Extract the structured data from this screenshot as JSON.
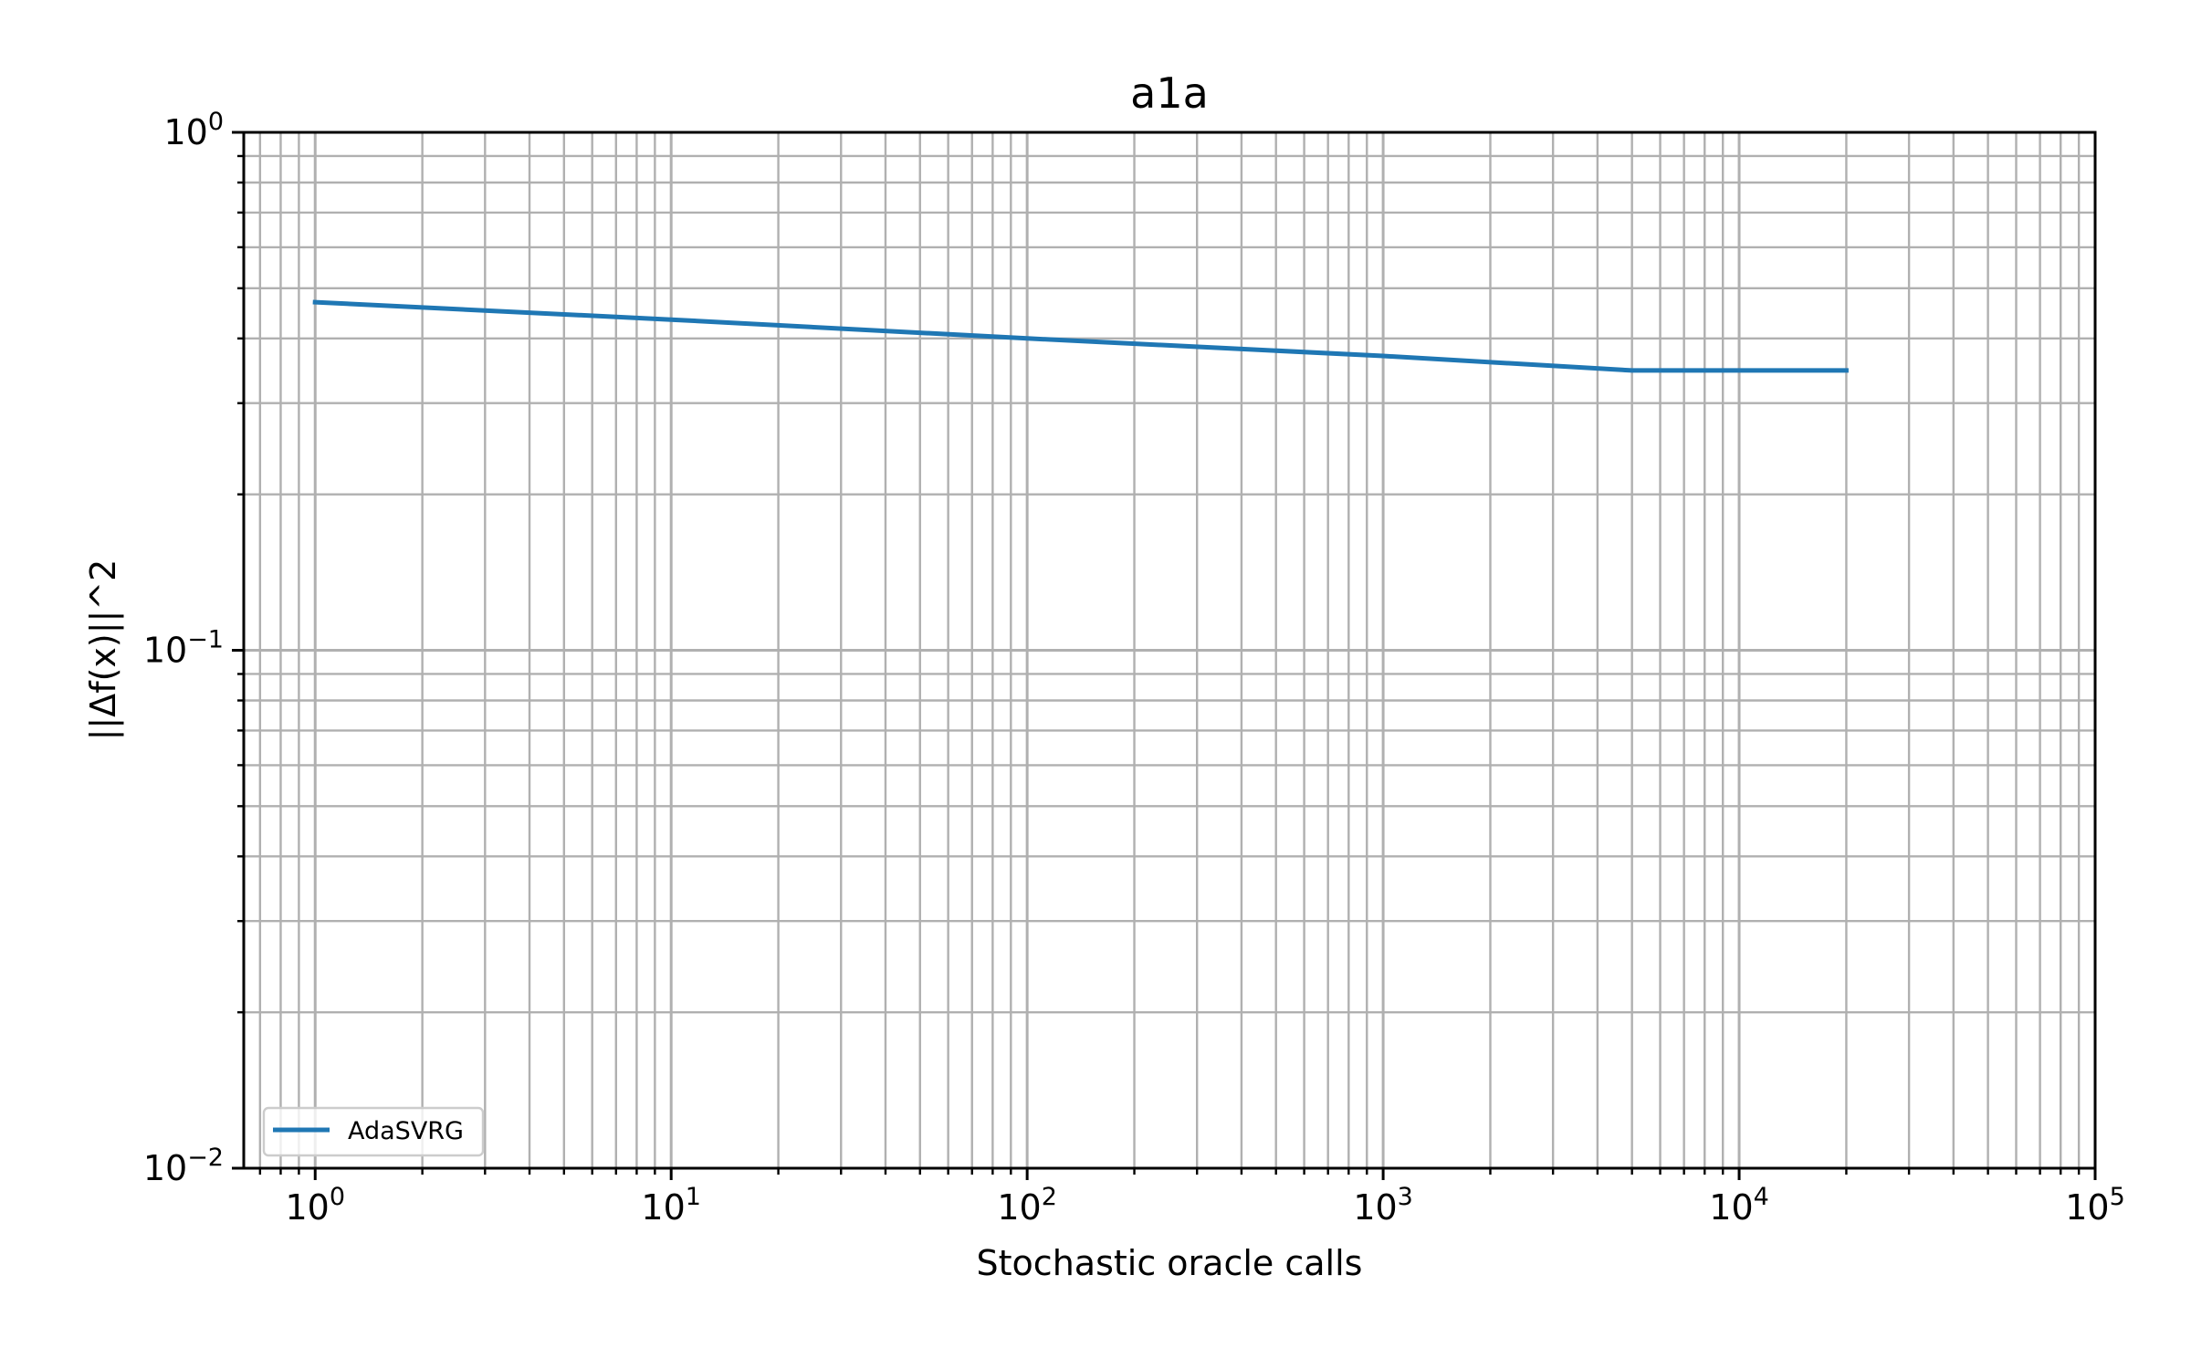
{
  "chart_data": {
    "type": "line",
    "title": "a1a",
    "xlabel": "Stochastic oracle calls",
    "ylabel": "||Δf(x)||^2",
    "xscale": "log",
    "yscale": "log",
    "xlim": [
      0.63,
      100000
    ],
    "ylim": [
      0.01,
      1
    ],
    "grid": true,
    "grid_which": "both",
    "legend_position": "lower-left",
    "x_ticks": [
      {
        "base": "10",
        "exp": "0"
      },
      {
        "base": "10",
        "exp": "1"
      },
      {
        "base": "10",
        "exp": "2"
      },
      {
        "base": "10",
        "exp": "3"
      },
      {
        "base": "10",
        "exp": "4"
      },
      {
        "base": "10",
        "exp": "5"
      }
    ],
    "y_ticks": [
      {
        "base": "10",
        "exp": "−2"
      },
      {
        "base": "10",
        "exp": "−1"
      },
      {
        "base": "10",
        "exp": "0"
      }
    ],
    "series": [
      {
        "name": "AdaSVRG",
        "color": "#1f77b4",
        "x": [
          1,
          10,
          100,
          1000,
          5000,
          20000
        ],
        "y": [
          0.47,
          0.435,
          0.4,
          0.37,
          0.347,
          0.347
        ]
      }
    ]
  }
}
